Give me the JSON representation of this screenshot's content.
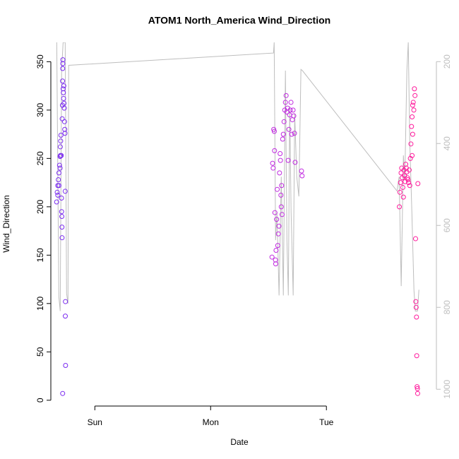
{
  "chart_data": {
    "type": "scatter",
    "title": "ATOM1 North_America Wind_Direction",
    "x_label": "Date",
    "y_label": "Wind_Direction",
    "xlim": [
      -0.38,
      2.95
    ],
    "xticks": [
      {
        "value": 0,
        "label": "Sun"
      },
      {
        "value": 1,
        "label": "Mon"
      },
      {
        "value": 2,
        "label": "Tue"
      }
    ],
    "ylim": [
      -6,
      370
    ],
    "yticks": [
      0,
      50,
      100,
      150,
      200,
      250,
      300,
      350
    ],
    "y2lim": [
      1041,
      153
    ],
    "y2ticks": [
      200,
      400,
      600,
      800,
      1000
    ],
    "series": [
      {
        "type": "scatter",
        "color": "#7b2cf0",
        "x": [
          -0.33,
          -0.325,
          -0.32,
          -0.315,
          -0.31,
          -0.305,
          -0.3,
          -0.298,
          -0.295,
          -0.293,
          -0.29,
          -0.288,
          -0.287,
          -0.285,
          -0.284,
          -0.283,
          -0.282,
          -0.28,
          -0.279,
          -0.278,
          -0.277,
          -0.276,
          -0.274,
          -0.272,
          -0.27,
          -0.268,
          -0.266,
          -0.264,
          -0.262,
          -0.26,
          -0.258,
          -0.256,
          -0.254,
          -0.255,
          -0.253,
          -0.278,
          -0.297,
          -0.3,
          -0.31,
          -0.32
        ],
        "values": [
          205,
          215,
          222,
          228,
          235,
          243,
          252,
          262,
          268,
          274,
          253,
          209,
          195,
          190,
          179,
          168,
          291,
          305,
          330,
          343,
          348,
          352,
          322,
          318,
          312,
          325,
          307,
          302,
          288,
          280,
          276,
          216,
          102,
          87,
          36,
          7,
          253,
          240,
          222,
          212
        ]
      },
      {
        "type": "scatter",
        "color": "#c02ae0",
        "x": [
          1.53,
          1.535,
          1.54,
          1.545,
          1.55,
          1.552,
          1.555,
          1.56,
          1.562,
          1.565,
          1.57,
          1.575,
          1.58,
          1.585,
          1.59,
          1.595,
          1.6,
          1.603,
          1.607,
          1.61,
          1.613,
          1.617,
          1.622,
          1.628,
          1.634,
          1.64,
          1.646,
          1.652,
          1.658,
          1.664,
          1.67,
          1.676,
          1.682,
          1.688,
          1.694,
          1.7,
          1.706,
          1.712,
          1.718,
          1.724,
          1.73,
          1.785,
          1.79
        ],
        "values": [
          148,
          245,
          240,
          280,
          278,
          258,
          194,
          145,
          141,
          155,
          187,
          218,
          160,
          172,
          180,
          235,
          255,
          248,
          212,
          200,
          222,
          192,
          270,
          275,
          288,
          300,
          308,
          315,
          298,
          302,
          248,
          280,
          295,
          300,
          308,
          275,
          290,
          300,
          294,
          276,
          246,
          237,
          232
        ]
      },
      {
        "type": "scatter",
        "color": "#ff1a9c",
        "x": [
          2.63,
          2.635,
          2.64,
          2.645,
          2.65,
          2.655,
          2.66,
          2.665,
          2.67,
          2.675,
          2.68,
          2.685,
          2.69,
          2.695,
          2.7,
          2.705,
          2.71,
          2.715,
          2.72,
          2.725,
          2.73,
          2.735,
          2.74,
          2.745,
          2.75,
          2.755,
          2.76,
          2.765,
          2.77,
          2.772,
          2.775,
          2.778,
          2.78,
          2.783,
          2.786,
          2.788,
          2.79,
          2.745,
          2.74
        ],
        "values": [
          200,
          215,
          225,
          235,
          240,
          230,
          220,
          210,
          238,
          232,
          226,
          244,
          240,
          236,
          230,
          228,
          225,
          238,
          222,
          250,
          265,
          283,
          293,
          305,
          308,
          300,
          322,
          315,
          167,
          102,
          96,
          86,
          46,
          14,
          12,
          7,
          224,
          275,
          253
        ]
      },
      {
        "type": "line",
        "axis": "y2",
        "color": "#bebebe",
        "x": [
          -0.329,
          -0.311,
          -0.299,
          -0.287,
          -0.274,
          -0.256,
          -0.244,
          -0.232,
          -0.226,
          1.543,
          1.549,
          1.561,
          1.573,
          1.591,
          1.61,
          1.628,
          1.646,
          1.659,
          1.671,
          1.683,
          1.695,
          1.713,
          1.726,
          1.744,
          1.762,
          1.78,
          1.793,
          2.61,
          2.628,
          2.646,
          2.665,
          2.677,
          2.695,
          2.707,
          2.72,
          2.738,
          2.756,
          2.768,
          2.787,
          2.799
        ],
        "values": [
          153,
          774,
          809,
          222,
          153,
          153,
          766,
          791,
          209,
          179,
          153,
          636,
          567,
          771,
          481,
          771,
          222,
          636,
          771,
          309,
          567,
          771,
          326,
          481,
          529,
          219,
          222,
          516,
          481,
          748,
          429,
          490,
          222,
          153,
          395,
          567,
          757,
          809,
          809,
          757
        ]
      }
    ]
  }
}
